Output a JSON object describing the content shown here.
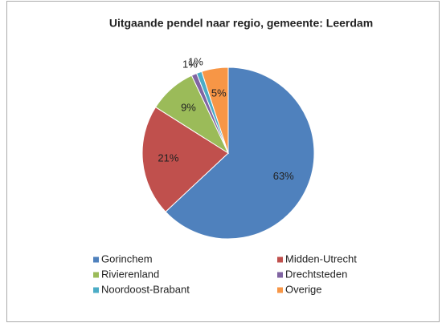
{
  "chart_data": {
    "type": "pie",
    "title": "Uitgaande pendel naar regio, gemeente: Leerdam",
    "categories": [
      "Gorinchem",
      "Midden-Utrecht",
      "Rivierenland",
      "Drechtsteden",
      "Noordoost-Brabant",
      "Overige"
    ],
    "values": [
      63,
      21,
      9,
      1,
      1,
      5
    ],
    "value_labels": [
      "63%",
      "21%",
      "9%",
      "1%",
      "1%",
      "5%"
    ],
    "colors": [
      "#4f81bd",
      "#c0504d",
      "#9bbb59",
      "#8064a2",
      "#4bacc6",
      "#f79646"
    ]
  }
}
